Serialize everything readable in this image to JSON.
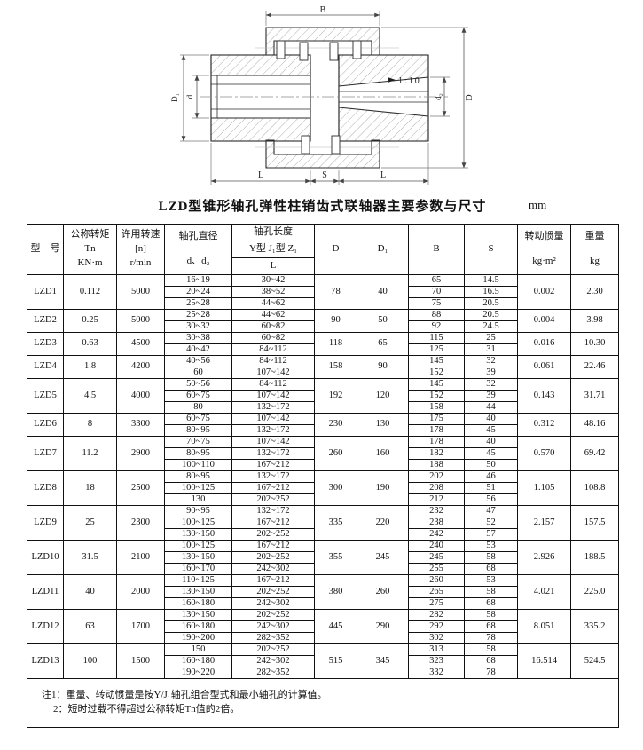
{
  "title": "LZD型锥形轴孔弹性柱销齿式联轴器主要参数与尺寸",
  "unit": "mm",
  "drawing": {
    "labels": {
      "B": "B",
      "D": "D",
      "D1": "D₁",
      "d": "d",
      "d2": "d₂",
      "L": "L",
      "S": "S",
      "taper": "1:10"
    }
  },
  "table": {
    "headers": {
      "model": "型　号",
      "torque": [
        "公称转矩",
        "Tn",
        "KN·m"
      ],
      "speed": [
        "许用转速",
        "[n]",
        "r/min"
      ],
      "bore_dia": [
        "轴孔直径",
        "d、d₂"
      ],
      "bore_len": "轴孔长度",
      "bore_len_types": "Y型 J₁型 Z₁",
      "bore_len_L": "L",
      "D": "D",
      "D1": "D₁",
      "B": "B",
      "S": "S",
      "inertia": [
        "转动惯量",
        "kg·m²"
      ],
      "weight": [
        "重量",
        "kg"
      ]
    },
    "rows": [
      {
        "model": "LZD1",
        "tn": "0.112",
        "n": "5000",
        "D": "78",
        "D1": "40",
        "inertia": "0.002",
        "weight": "2.30",
        "subs": [
          {
            "d": "16~19",
            "L": "30~42",
            "B": "65",
            "S": "14.5"
          },
          {
            "d": "20~24",
            "L": "38~52",
            "B": "70",
            "S": "16.5"
          },
          {
            "d": "25~28",
            "L": "44~62",
            "B": "75",
            "S": "20.5"
          }
        ]
      },
      {
        "model": "LZD2",
        "tn": "0.25",
        "n": "5000",
        "D": "90",
        "D1": "50",
        "inertia": "0.004",
        "weight": "3.98",
        "subs": [
          {
            "d": "25~28",
            "L": "44~62",
            "B": "88",
            "S": "20.5"
          },
          {
            "d": "30~32",
            "L": "60~82",
            "B": "92",
            "S": "24.5"
          }
        ]
      },
      {
        "model": "LZD3",
        "tn": "0.63",
        "n": "4500",
        "D": "118",
        "D1": "65",
        "inertia": "0.016",
        "weight": "10.30",
        "subs": [
          {
            "d": "30~38",
            "L": "60~82",
            "B": "115",
            "S": "25"
          },
          {
            "d": "40~42",
            "L": "84~112",
            "B": "125",
            "S": "31"
          }
        ]
      },
      {
        "model": "LZD4",
        "tn": "1.8",
        "n": "4200",
        "D": "158",
        "D1": "90",
        "inertia": "0.061",
        "weight": "22.46",
        "subs": [
          {
            "d": "40~56",
            "L": "84~112",
            "B": "145",
            "S": "32"
          },
          {
            "d": "60",
            "L": "107~142",
            "B": "152",
            "S": "39"
          }
        ]
      },
      {
        "model": "LZD5",
        "tn": "4.5",
        "n": "4000",
        "D": "192",
        "D1": "120",
        "inertia": "0.143",
        "weight": "31.71",
        "subs": [
          {
            "d": "50~56",
            "L": "84~112",
            "B": "145",
            "S": "32"
          },
          {
            "d": "60~75",
            "L": "107~142",
            "B": "152",
            "S": "39"
          },
          {
            "d": "80",
            "L": "132~172",
            "B": "158",
            "S": "44"
          }
        ]
      },
      {
        "model": "LZD6",
        "tn": "8",
        "n": "3300",
        "D": "230",
        "D1": "130",
        "inertia": "0.312",
        "weight": "48.16",
        "subs": [
          {
            "d": "60~75",
            "L": "107~142",
            "B": "175",
            "S": "40"
          },
          {
            "d": "80~95",
            "L": "132~172",
            "B": "178",
            "S": "45"
          }
        ]
      },
      {
        "model": "LZD7",
        "tn": "11.2",
        "n": "2900",
        "D": "260",
        "D1": "160",
        "inertia": "0.570",
        "weight": "69.42",
        "subs": [
          {
            "d": "70~75",
            "L": "107~142",
            "B": "178",
            "S": "40"
          },
          {
            "d": "80~95",
            "L": "132~172",
            "B": "182",
            "S": "45"
          },
          {
            "d": "100~110",
            "L": "167~212",
            "B": "188",
            "S": "50"
          }
        ]
      },
      {
        "model": "LZD8",
        "tn": "18",
        "n": "2500",
        "D": "300",
        "D1": "190",
        "inertia": "1.105",
        "weight": "108.8",
        "subs": [
          {
            "d": "80~95",
            "L": "132~172",
            "B": "202",
            "S": "46"
          },
          {
            "d": "100~125",
            "L": "167~212",
            "B": "208",
            "S": "51"
          },
          {
            "d": "130",
            "L": "202~252",
            "B": "212",
            "S": "56"
          }
        ]
      },
      {
        "model": "LZD9",
        "tn": "25",
        "n": "2300",
        "D": "335",
        "D1": "220",
        "inertia": "2.157",
        "weight": "157.5",
        "subs": [
          {
            "d": "90~95",
            "L": "132~172",
            "B": "232",
            "S": "47"
          },
          {
            "d": "100~125",
            "L": "167~212",
            "B": "238",
            "S": "52"
          },
          {
            "d": "130~150",
            "L": "202~252",
            "B": "242",
            "S": "57"
          }
        ]
      },
      {
        "model": "LZD10",
        "tn": "31.5",
        "n": "2100",
        "D": "355",
        "D1": "245",
        "inertia": "2.926",
        "weight": "188.5",
        "subs": [
          {
            "d": "100~125",
            "L": "167~212",
            "B": "240",
            "S": "53"
          },
          {
            "d": "130~150",
            "L": "202~252",
            "B": "245",
            "S": "58"
          },
          {
            "d": "160~170",
            "L": "242~302",
            "B": "255",
            "S": "68"
          }
        ]
      },
      {
        "model": "LZD11",
        "tn": "40",
        "n": "2000",
        "D": "380",
        "D1": "260",
        "inertia": "4.021",
        "weight": "225.0",
        "subs": [
          {
            "d": "110~125",
            "L": "167~212",
            "B": "260",
            "S": "53"
          },
          {
            "d": "130~150",
            "L": "202~252",
            "B": "265",
            "S": "58"
          },
          {
            "d": "160~180",
            "L": "242~302",
            "B": "275",
            "S": "68"
          }
        ]
      },
      {
        "model": "LZD12",
        "tn": "63",
        "n": "1700",
        "D": "445",
        "D1": "290",
        "inertia": "8.051",
        "weight": "335.2",
        "subs": [
          {
            "d": "130~150",
            "L": "202~252",
            "B": "282",
            "S": "58"
          },
          {
            "d": "160~180",
            "L": "242~302",
            "B": "292",
            "S": "68"
          },
          {
            "d": "190~200",
            "L": "282~352",
            "B": "302",
            "S": "78"
          }
        ]
      },
      {
        "model": "LZD13",
        "tn": "100",
        "n": "1500",
        "D": "515",
        "D1": "345",
        "inertia": "16.514",
        "weight": "524.5",
        "subs": [
          {
            "d": "150",
            "L": "202~252",
            "B": "313",
            "S": "58"
          },
          {
            "d": "160~180",
            "L": "242~302",
            "B": "323",
            "S": "68"
          },
          {
            "d": "190~220",
            "L": "282~352",
            "B": "332",
            "S": "78"
          }
        ]
      }
    ]
  },
  "notes": [
    "注1：重量、转动惯量是按Y/J₁轴孔组合型式和最小轴孔的计算值。",
    "2：短时过载不得超过公称转矩Tn值的2倍。"
  ]
}
